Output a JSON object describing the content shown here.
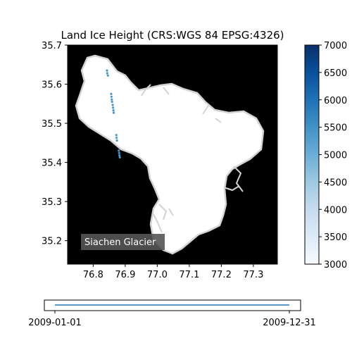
{
  "chart_data": [
    {
      "type": "scatter",
      "title": "Land Ice Height (CRS:WGS 84 EPSG:4326)",
      "xlabel": "",
      "ylabel": "",
      "xlim": [
        76.72,
        77.375
      ],
      "ylim": [
        35.14,
        35.7
      ],
      "x_ticks": [
        "76.8",
        "76.9",
        "77.0",
        "77.1",
        "77.2",
        "77.3"
      ],
      "x_tick_values": [
        76.8,
        76.9,
        77.0,
        77.1,
        77.2,
        77.3
      ],
      "y_ticks": [
        "35.2",
        "35.3",
        "35.4",
        "35.5",
        "35.6",
        "35.7"
      ],
      "y_tick_values": [
        35.2,
        35.3,
        35.4,
        35.5,
        35.6,
        35.7
      ],
      "background": "#000000",
      "glacier_fill": "#ffffff",
      "glacier_outline": "#d3d3d3",
      "point_color": "#4a98c9",
      "annotation": "Siachen Glacier",
      "points": [
        {
          "x": 76.843,
          "y": 35.635
        },
        {
          "x": 76.844,
          "y": 35.628
        },
        {
          "x": 76.846,
          "y": 35.622
        },
        {
          "x": 76.856,
          "y": 35.575
        },
        {
          "x": 76.857,
          "y": 35.568
        },
        {
          "x": 76.858,
          "y": 35.561
        },
        {
          "x": 76.859,
          "y": 35.555
        },
        {
          "x": 76.861,
          "y": 35.547
        },
        {
          "x": 76.862,
          "y": 35.54
        },
        {
          "x": 76.863,
          "y": 35.533
        },
        {
          "x": 76.864,
          "y": 35.527
        },
        {
          "x": 76.872,
          "y": 35.47
        },
        {
          "x": 76.873,
          "y": 35.463
        },
        {
          "x": 76.874,
          "y": 35.456
        },
        {
          "x": 76.88,
          "y": 35.43
        },
        {
          "x": 76.881,
          "y": 35.424
        },
        {
          "x": 76.882,
          "y": 35.418
        },
        {
          "x": 76.883,
          "y": 35.413
        }
      ],
      "colorbar": {
        "min": 3000,
        "max": 7000,
        "ticks": [
          "3000",
          "3500",
          "4000",
          "4500",
          "5000",
          "5500",
          "6000",
          "6500",
          "7000"
        ],
        "tick_values": [
          3000,
          3500,
          4000,
          4500,
          5000,
          5500,
          6000,
          6500,
          7000
        ],
        "colormap": "Blues"
      }
    },
    {
      "type": "line",
      "x_ticks": [
        "2009-01-01",
        "2009-12-31"
      ],
      "x": [
        "2009-01-01",
        "2009-12-31"
      ],
      "y": [
        0,
        0
      ],
      "line_color": "#1f77b4"
    }
  ]
}
